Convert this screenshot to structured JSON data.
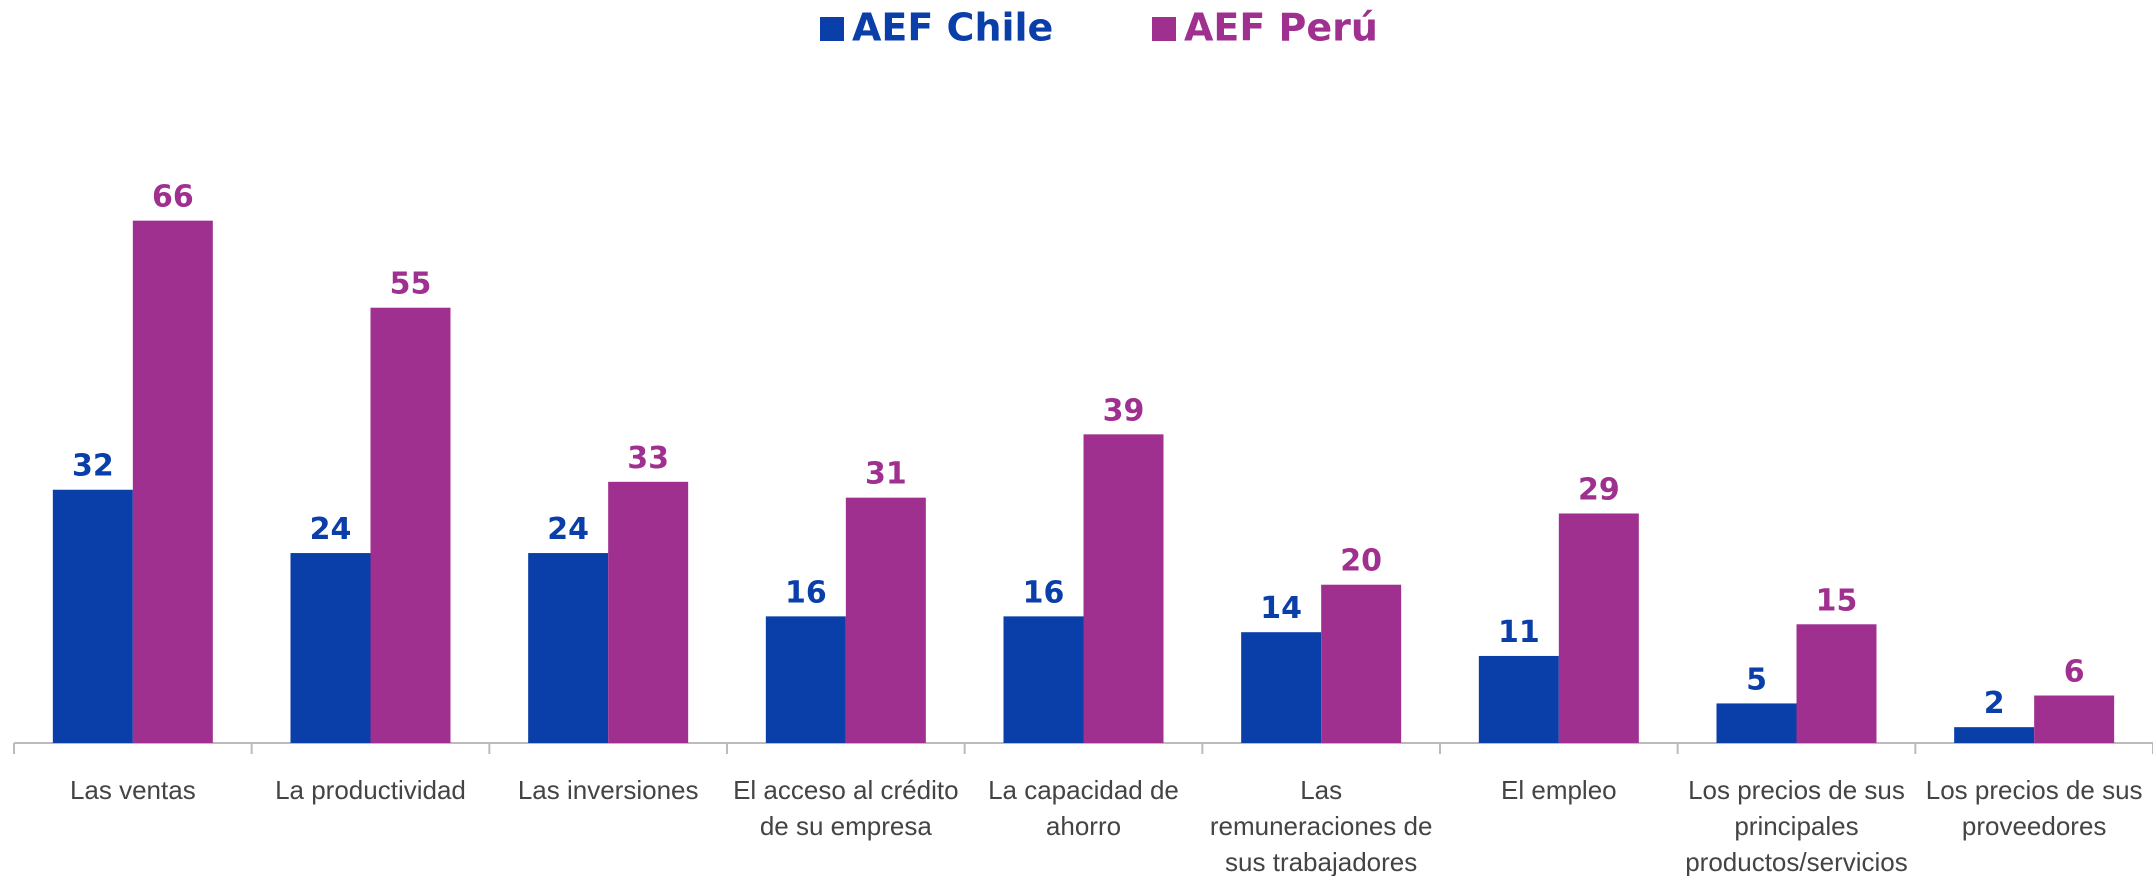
{
  "chart_data": {
    "type": "bar",
    "categories": [
      "Las ventas",
      "La productividad",
      "Las inversiones",
      "El acceso al crédito de su empresa",
      "La capacidad de ahorro",
      "Las remuneraciones de sus trabajadores",
      "El empleo",
      "Los precios de sus principales productos/servicios",
      "Los precios de sus proveedores"
    ],
    "series": [
      {
        "name": "AEF Chile",
        "color": "#0a3ea8",
        "values": [
          32,
          24,
          24,
          16,
          16,
          14,
          11,
          5,
          2
        ]
      },
      {
        "name": "AEF Perú",
        "color": "#a0308f",
        "values": [
          66,
          55,
          33,
          31,
          39,
          20,
          29,
          15,
          6
        ]
      }
    ],
    "ylim": [
      0,
      70
    ],
    "legend": "top"
  }
}
